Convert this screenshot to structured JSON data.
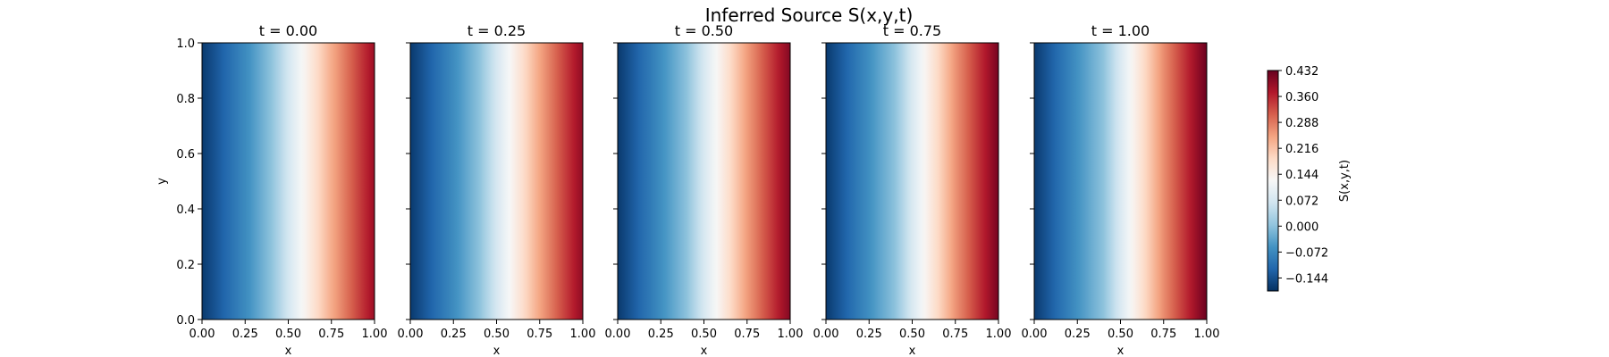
{
  "chart_data": {
    "type": "heatmap",
    "title": "Inferred Source S(x,y,t)",
    "panels": [
      {
        "title": "t = 0.00",
        "t": 0.0
      },
      {
        "title": "t = 0.25",
        "t": 0.25
      },
      {
        "title": "t = 0.50",
        "t": 0.5
      },
      {
        "title": "t = 0.75",
        "t": 0.75
      },
      {
        "title": "t = 1.00",
        "t": 1.0
      }
    ],
    "xlabel": "x",
    "ylabel": "y",
    "xlim": [
      0,
      1
    ],
    "ylim": [
      0,
      1
    ],
    "x_ticks": [
      "0.00",
      "0.25",
      "0.50",
      "0.75",
      "1.00"
    ],
    "y_ticks": [
      "0.0",
      "0.2",
      "0.4",
      "0.6",
      "0.8",
      "1.0"
    ],
    "field_profile": {
      "x": [
        0.0,
        0.25,
        0.4,
        0.5,
        0.75,
        1.0
      ],
      "S_at_t0": [
        -0.17,
        -0.07,
        0.0,
        0.07,
        0.24,
        0.39
      ],
      "S_at_t1": [
        -0.17,
        -0.06,
        0.0,
        0.08,
        0.27,
        0.43
      ]
    },
    "colorbar": {
      "label": "S(x,y,t)",
      "colormap": "RdBu_r",
      "range": [
        -0.18,
        0.432
      ],
      "ticks": [
        "−0.144",
        "−0.072",
        "0.000",
        "0.072",
        "0.144",
        "0.216",
        "0.288",
        "0.360",
        "0.432"
      ],
      "colors": [
        "#053061",
        "#2166ac",
        "#4393c3",
        "#92c5de",
        "#d1e5f0",
        "#f7f7f7",
        "#fddbc7",
        "#f4a582",
        "#d6604d",
        "#b2182b",
        "#67001f"
      ]
    }
  }
}
